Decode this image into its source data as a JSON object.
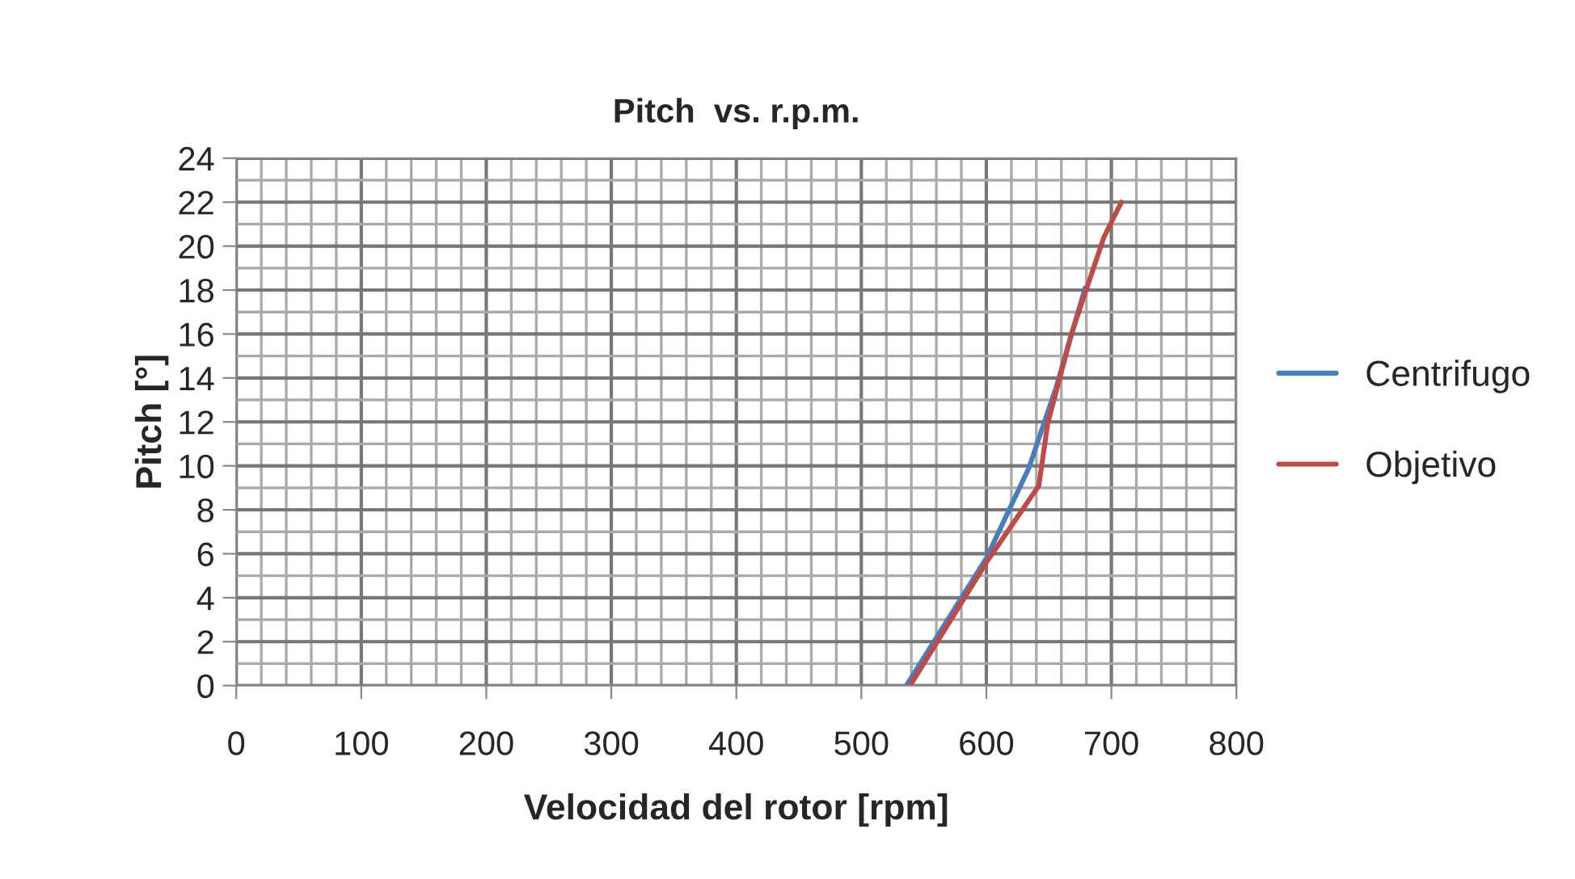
{
  "chart_data": {
    "type": "line",
    "title": "Pitch  vs. r.p.m.",
    "xlabel": "Velocidad del rotor [rpm]",
    "ylabel": "Pitch [°]",
    "xlim": [
      0,
      800
    ],
    "xticks": [
      0,
      100,
      200,
      300,
      400,
      500,
      600,
      700,
      800
    ],
    "ylim": [
      0,
      24
    ],
    "yticks": [
      0,
      2,
      4,
      6,
      8,
      10,
      12,
      14,
      16,
      18,
      20,
      22,
      24
    ],
    "grid": true,
    "legend": "right",
    "marker": "none",
    "line_style": "solid",
    "series": [
      {
        "name": "Centrifugo",
        "color": "#4a7ebb",
        "x": [
          536,
          600,
          634,
          656,
          679
        ],
        "values": [
          0,
          5.8,
          9.9,
          13.6,
          18.1
        ]
      },
      {
        "name": "Objetivo",
        "color": "#be4b48",
        "x": [
          539,
          600,
          642,
          649,
          668,
          694,
          708
        ],
        "values": [
          0,
          5.6,
          9.1,
          11.9,
          16.0,
          20.4,
          22.0
        ]
      }
    ]
  }
}
